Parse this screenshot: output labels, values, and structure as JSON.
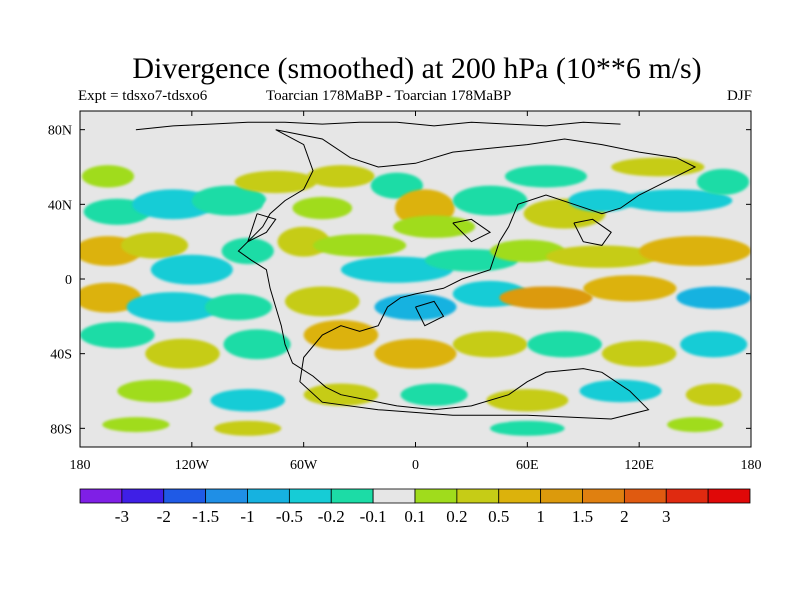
{
  "title": "Divergence (smoothed) at 200 hPa (10**6 m/s)",
  "subtitle_left": "Expt = tdsxo7-tdsxo6",
  "subtitle_center": "Toarcian 178MaBP - Toarcian 178MaBP",
  "subtitle_right": "DJF",
  "axes": {
    "x_ticks": [
      {
        "value": -180,
        "label": "180"
      },
      {
        "value": -120,
        "label": "120W"
      },
      {
        "value": -60,
        "label": "60W"
      },
      {
        "value": 0,
        "label": "0"
      },
      {
        "value": 60,
        "label": "60E"
      },
      {
        "value": 120,
        "label": "120E"
      },
      {
        "value": 180,
        "label": "180"
      }
    ],
    "y_ticks": [
      {
        "value": 80,
        "label": "80N"
      },
      {
        "value": 40,
        "label": "40N"
      },
      {
        "value": 0,
        "label": "0"
      },
      {
        "value": -40,
        "label": "40S"
      },
      {
        "value": -80,
        "label": "80S"
      }
    ],
    "xlim": [
      -180,
      180
    ],
    "ylim": [
      -90,
      90
    ]
  },
  "colorbar": {
    "colors": [
      "#7f1fe6",
      "#3f1fe6",
      "#1f5ae6",
      "#1f8fe6",
      "#16b2e0",
      "#16ccd6",
      "#1cdca6",
      "#e6e6e6",
      "#a0dc1c",
      "#c6cc16",
      "#dcb20c",
      "#dc9a0c",
      "#e08010",
      "#e05a10",
      "#e02a10",
      "#e00808"
    ],
    "labels": [
      "-3",
      "-2",
      "-1.5",
      "-1",
      "-0.5",
      "-0.2",
      "-0.1",
      "0.1",
      "0.2",
      "0.5",
      "1",
      "1.5",
      "2",
      "3"
    ]
  },
  "blobs": [
    {
      "lon": -165,
      "lat": 55,
      "rx": 14,
      "ry": 6,
      "c": 8
    },
    {
      "lon": -160,
      "lat": 36,
      "rx": 18,
      "ry": 7,
      "c": 6
    },
    {
      "lon": -130,
      "lat": 40,
      "rx": 22,
      "ry": 8,
      "c": 5
    },
    {
      "lon": -100,
      "lat": 42,
      "rx": 20,
      "ry": 8,
      "c": 6
    },
    {
      "lon": -70,
      "lat": 38,
      "rx": 12,
      "ry": 7,
      "c": 7
    },
    {
      "lon": -75,
      "lat": 52,
      "rx": 22,
      "ry": 6,
      "c": 9
    },
    {
      "lon": -40,
      "lat": 55,
      "rx": 18,
      "ry": 6,
      "c": 9
    },
    {
      "lon": -50,
      "lat": 38,
      "rx": 16,
      "ry": 6,
      "c": 8
    },
    {
      "lon": -10,
      "lat": 50,
      "rx": 14,
      "ry": 7,
      "c": 6
    },
    {
      "lon": 5,
      "lat": 38,
      "rx": 16,
      "ry": 10,
      "c": 10
    },
    {
      "lon": 10,
      "lat": 28,
      "rx": 22,
      "ry": 6,
      "c": 8
    },
    {
      "lon": 40,
      "lat": 42,
      "rx": 20,
      "ry": 8,
      "c": 6
    },
    {
      "lon": 70,
      "lat": 55,
      "rx": 22,
      "ry": 6,
      "c": 6
    },
    {
      "lon": 80,
      "lat": 35,
      "rx": 22,
      "ry": 8,
      "c": 9
    },
    {
      "lon": 100,
      "lat": 42,
      "rx": 18,
      "ry": 6,
      "c": 5
    },
    {
      "lon": 140,
      "lat": 42,
      "rx": 30,
      "ry": 6,
      "c": 5
    },
    {
      "lon": 130,
      "lat": 60,
      "rx": 25,
      "ry": 5,
      "c": 9
    },
    {
      "lon": 165,
      "lat": 52,
      "rx": 14,
      "ry": 7,
      "c": 6
    },
    {
      "lon": -165,
      "lat": 15,
      "rx": 18,
      "ry": 8,
      "c": 10
    },
    {
      "lon": -140,
      "lat": 18,
      "rx": 18,
      "ry": 7,
      "c": 9
    },
    {
      "lon": -120,
      "lat": 5,
      "rx": 22,
      "ry": 8,
      "c": 5
    },
    {
      "lon": -90,
      "lat": 15,
      "rx": 14,
      "ry": 7,
      "c": 6
    },
    {
      "lon": -60,
      "lat": 20,
      "rx": 14,
      "ry": 8,
      "c": 9
    },
    {
      "lon": -30,
      "lat": 18,
      "rx": 25,
      "ry": 6,
      "c": 8
    },
    {
      "lon": -10,
      "lat": 5,
      "rx": 30,
      "ry": 7,
      "c": 5
    },
    {
      "lon": 30,
      "lat": 10,
      "rx": 25,
      "ry": 6,
      "c": 6
    },
    {
      "lon": 60,
      "lat": 15,
      "rx": 20,
      "ry": 6,
      "c": 8
    },
    {
      "lon": 100,
      "lat": 12,
      "rx": 30,
      "ry": 6,
      "c": 9
    },
    {
      "lon": 150,
      "lat": 15,
      "rx": 30,
      "ry": 8,
      "c": 10
    },
    {
      "lon": -165,
      "lat": -10,
      "rx": 18,
      "ry": 8,
      "c": 10
    },
    {
      "lon": -130,
      "lat": -15,
      "rx": 25,
      "ry": 8,
      "c": 5
    },
    {
      "lon": -95,
      "lat": -15,
      "rx": 18,
      "ry": 7,
      "c": 6
    },
    {
      "lon": -50,
      "lat": -12,
      "rx": 20,
      "ry": 8,
      "c": 9
    },
    {
      "lon": 0,
      "lat": -15,
      "rx": 22,
      "ry": 7,
      "c": 4
    },
    {
      "lon": 40,
      "lat": -8,
      "rx": 20,
      "ry": 7,
      "c": 5
    },
    {
      "lon": 70,
      "lat": -10,
      "rx": 25,
      "ry": 6,
      "c": 11
    },
    {
      "lon": 115,
      "lat": -5,
      "rx": 25,
      "ry": 7,
      "c": 10
    },
    {
      "lon": 160,
      "lat": -10,
      "rx": 20,
      "ry": 6,
      "c": 4
    },
    {
      "lon": -160,
      "lat": -30,
      "rx": 20,
      "ry": 7,
      "c": 6
    },
    {
      "lon": -125,
      "lat": -40,
      "rx": 20,
      "ry": 8,
      "c": 9
    },
    {
      "lon": -85,
      "lat": -35,
      "rx": 18,
      "ry": 8,
      "c": 6
    },
    {
      "lon": -40,
      "lat": -30,
      "rx": 20,
      "ry": 8,
      "c": 10
    },
    {
      "lon": 0,
      "lat": -40,
      "rx": 22,
      "ry": 8,
      "c": 10
    },
    {
      "lon": 40,
      "lat": -35,
      "rx": 20,
      "ry": 7,
      "c": 9
    },
    {
      "lon": 80,
      "lat": -35,
      "rx": 20,
      "ry": 7,
      "c": 6
    },
    {
      "lon": 120,
      "lat": -40,
      "rx": 20,
      "ry": 7,
      "c": 9
    },
    {
      "lon": 160,
      "lat": -35,
      "rx": 18,
      "ry": 7,
      "c": 5
    },
    {
      "lon": -140,
      "lat": -60,
      "rx": 20,
      "ry": 6,
      "c": 8
    },
    {
      "lon": -90,
      "lat": -65,
      "rx": 20,
      "ry": 6,
      "c": 5
    },
    {
      "lon": -40,
      "lat": -62,
      "rx": 20,
      "ry": 6,
      "c": 9
    },
    {
      "lon": 10,
      "lat": -62,
      "rx": 18,
      "ry": 6,
      "c": 6
    },
    {
      "lon": 60,
      "lat": -65,
      "rx": 22,
      "ry": 6,
      "c": 9
    },
    {
      "lon": 110,
      "lat": -60,
      "rx": 22,
      "ry": 6,
      "c": 5
    },
    {
      "lon": 160,
      "lat": -62,
      "rx": 15,
      "ry": 6,
      "c": 9
    },
    {
      "lon": -150,
      "lat": -78,
      "rx": 18,
      "ry": 4,
      "c": 8
    },
    {
      "lon": -90,
      "lat": -80,
      "rx": 18,
      "ry": 4,
      "c": 9
    },
    {
      "lon": 60,
      "lat": -80,
      "rx": 20,
      "ry": 4,
      "c": 6
    },
    {
      "lon": 150,
      "lat": -78,
      "rx": 15,
      "ry": 4,
      "c": 8
    }
  ],
  "coastlines": [
    [
      [
        -75,
        80
      ],
      [
        -60,
        72
      ],
      [
        -55,
        58
      ],
      [
        -60,
        48
      ],
      [
        -70,
        42
      ],
      [
        -78,
        35
      ],
      [
        -82,
        28
      ],
      [
        -90,
        20
      ],
      [
        -95,
        15
      ],
      [
        -88,
        10
      ],
      [
        -80,
        5
      ],
      [
        -78,
        -5
      ],
      [
        -75,
        -15
      ],
      [
        -72,
        -25
      ],
      [
        -70,
        -35
      ],
      [
        -66,
        -45
      ],
      [
        -55,
        -52
      ],
      [
        -48,
        -58
      ],
      [
        -40,
        -62
      ],
      [
        -25,
        -65
      ],
      [
        -10,
        -68
      ],
      [
        10,
        -70
      ],
      [
        30,
        -68
      ],
      [
        50,
        -62
      ],
      [
        60,
        -55
      ],
      [
        70,
        -50
      ],
      [
        90,
        -48
      ],
      [
        100,
        -50
      ],
      [
        115,
        -60
      ],
      [
        125,
        -70
      ],
      [
        105,
        -75
      ],
      [
        60,
        -73
      ],
      [
        20,
        -73
      ],
      [
        -20,
        -70
      ],
      [
        -50,
        -66
      ],
      [
        -62,
        -55
      ],
      [
        -60,
        -42
      ],
      [
        -50,
        -30
      ],
      [
        -40,
        -25
      ],
      [
        -30,
        -28
      ],
      [
        -20,
        -25
      ],
      [
        -15,
        -15
      ],
      [
        -8,
        -10
      ],
      [
        0,
        -8
      ],
      [
        15,
        -5
      ],
      [
        25,
        0
      ],
      [
        40,
        5
      ],
      [
        45,
        20
      ],
      [
        50,
        28
      ],
      [
        55,
        40
      ],
      [
        70,
        45
      ],
      [
        85,
        40
      ],
      [
        100,
        35
      ],
      [
        110,
        38
      ],
      [
        120,
        45
      ],
      [
        130,
        50
      ],
      [
        140,
        55
      ],
      [
        150,
        60
      ],
      [
        140,
        65
      ],
      [
        120,
        68
      ],
      [
        100,
        72
      ],
      [
        80,
        75
      ],
      [
        60,
        72
      ],
      [
        40,
        70
      ],
      [
        20,
        68
      ],
      [
        0,
        62
      ],
      [
        -20,
        60
      ],
      [
        -35,
        65
      ],
      [
        -50,
        75
      ],
      [
        -75,
        80
      ]
    ],
    [
      [
        -150,
        80
      ],
      [
        -130,
        82
      ],
      [
        -110,
        83
      ],
      [
        -90,
        84
      ],
      [
        -70,
        84
      ],
      [
        -50,
        83
      ],
      [
        -30,
        84
      ],
      [
        -10,
        84
      ],
      [
        10,
        82
      ],
      [
        30,
        84
      ],
      [
        50,
        83
      ],
      [
        70,
        82
      ],
      [
        90,
        84
      ],
      [
        110,
        83
      ]
    ],
    [
      [
        -85,
        35
      ],
      [
        -75,
        32
      ],
      [
        -80,
        25
      ],
      [
        -90,
        20
      ],
      [
        -85,
        35
      ]
    ],
    [
      [
        20,
        30
      ],
      [
        30,
        32
      ],
      [
        40,
        25
      ],
      [
        30,
        20
      ],
      [
        20,
        30
      ]
    ],
    [
      [
        85,
        30
      ],
      [
        95,
        32
      ],
      [
        105,
        25
      ],
      [
        100,
        18
      ],
      [
        90,
        20
      ],
      [
        85,
        30
      ]
    ],
    [
      [
        0,
        -15
      ],
      [
        10,
        -12
      ],
      [
        15,
        -20
      ],
      [
        5,
        -25
      ],
      [
        0,
        -15
      ]
    ]
  ]
}
